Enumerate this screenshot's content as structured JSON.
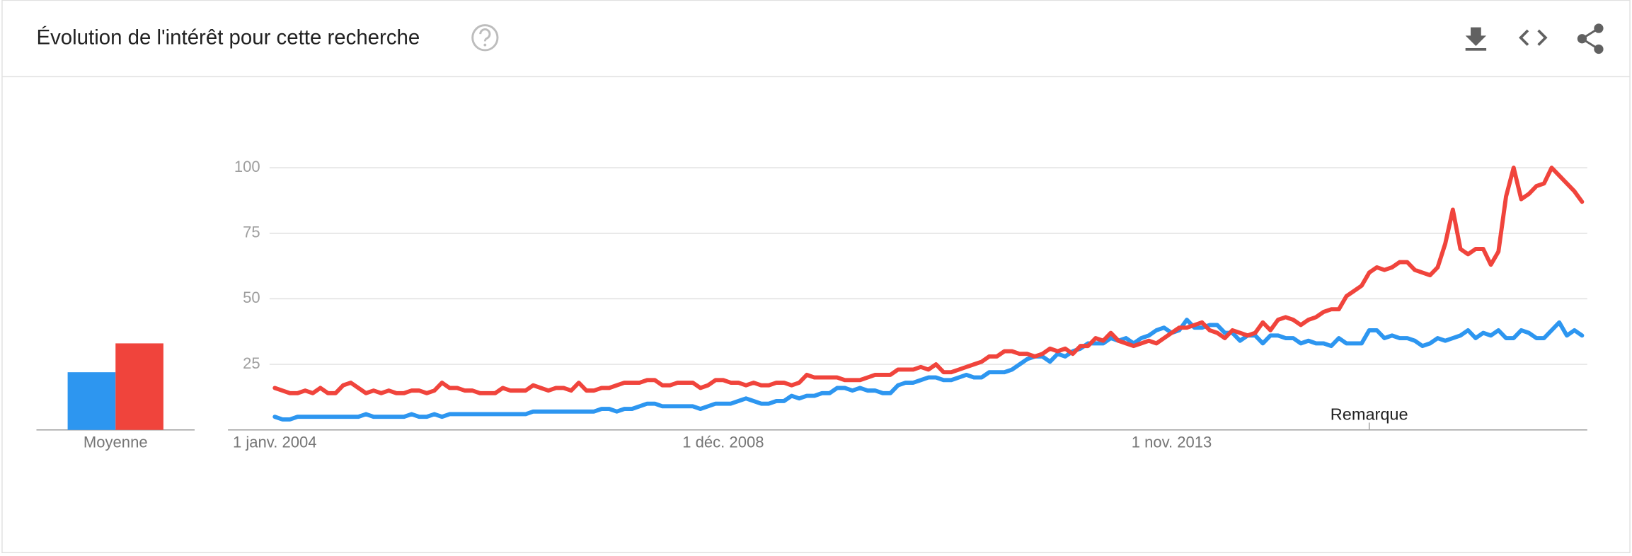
{
  "chart_data": {
    "type": "line",
    "title": "Évolution de l'intérêt pour cette recherche",
    "categories": [
      "1 janv. 2004",
      null,
      null,
      null,
      null,
      null,
      null,
      null,
      null,
      null,
      null,
      null,
      null,
      null,
      null,
      null,
      null,
      null,
      null,
      null,
      null,
      null,
      null,
      null,
      null,
      null,
      null,
      null,
      null,
      null,
      null,
      null,
      null,
      null,
      null,
      null,
      null,
      null,
      null,
      null,
      null,
      null,
      null,
      null,
      null,
      null,
      null,
      null,
      null,
      null,
      null,
      null,
      null,
      null,
      null,
      null,
      null,
      null,
      null,
      "1 déc. 2008",
      null,
      null,
      null,
      null,
      null,
      null,
      null,
      null,
      null,
      null,
      null,
      null,
      null,
      null,
      null,
      null,
      null,
      null,
      null,
      null,
      null,
      null,
      null,
      null,
      null,
      null,
      null,
      null,
      null,
      null,
      null,
      null,
      null,
      null,
      null,
      null,
      null,
      null,
      null,
      null,
      null,
      null,
      null,
      null,
      null,
      null,
      null,
      null,
      null,
      null,
      null,
      null,
      null,
      null,
      null,
      null,
      null,
      null,
      "1 nov. 2013",
      null,
      null,
      null,
      null,
      null,
      null,
      null,
      null,
      null,
      null,
      null,
      null,
      null,
      null,
      null,
      null,
      null,
      null,
      null,
      null,
      null,
      null,
      null,
      null,
      null,
      null,
      null,
      null,
      null,
      null,
      null,
      null,
      null,
      null,
      null,
      null,
      null,
      null,
      null,
      null,
      null,
      null,
      null,
      null,
      null,
      null,
      null,
      null,
      null,
      null,
      null,
      null,
      null,
      null
    ],
    "series": [
      {
        "color": "#2d96f0",
        "values": [
          5,
          4,
          4,
          5,
          5,
          5,
          5,
          5,
          5,
          5,
          5,
          5,
          6,
          5,
          5,
          5,
          5,
          5,
          6,
          5,
          5,
          6,
          5,
          6,
          6,
          6,
          6,
          6,
          6,
          6,
          6,
          6,
          6,
          6,
          7,
          7,
          7,
          7,
          7,
          7,
          7,
          7,
          7,
          8,
          8,
          7,
          8,
          8,
          9,
          10,
          10,
          9,
          9,
          9,
          9,
          9,
          8,
          9,
          10,
          10,
          10,
          11,
          12,
          11,
          10,
          10,
          11,
          11,
          13,
          12,
          13,
          13,
          14,
          14,
          16,
          16,
          15,
          16,
          15,
          15,
          14,
          14,
          17,
          18,
          18,
          19,
          20,
          20,
          19,
          19,
          20,
          21,
          20,
          20,
          22,
          22,
          22,
          23,
          25,
          27,
          28,
          28,
          26,
          29,
          28,
          30,
          31,
          33,
          33,
          33,
          35,
          34,
          35,
          33,
          35,
          36,
          38,
          39,
          37,
          38,
          42,
          39,
          39,
          40,
          40,
          37,
          37,
          34,
          36,
          36,
          33,
          36,
          36,
          35,
          35,
          33,
          34,
          33,
          33,
          32,
          35,
          33,
          33,
          33,
          38,
          38,
          35,
          36,
          35,
          35,
          34,
          32,
          33,
          35,
          34,
          35,
          36,
          38,
          35,
          37,
          36,
          38,
          35,
          35,
          38,
          37,
          35,
          35,
          38,
          41,
          36,
          38,
          36
        ]
      },
      {
        "color": "#f0443c",
        "values": [
          16,
          15,
          14,
          14,
          15,
          14,
          16,
          14,
          14,
          17,
          18,
          16,
          14,
          15,
          14,
          15,
          14,
          14,
          15,
          15,
          14,
          15,
          18,
          16,
          16,
          15,
          15,
          14,
          14,
          14,
          16,
          15,
          15,
          15,
          17,
          16,
          15,
          16,
          16,
          15,
          18,
          15,
          15,
          16,
          16,
          17,
          18,
          18,
          18,
          19,
          19,
          17,
          17,
          18,
          18,
          18,
          16,
          17,
          19,
          19,
          18,
          18,
          17,
          18,
          17,
          17,
          18,
          18,
          17,
          18,
          21,
          20,
          20,
          20,
          20,
          19,
          19,
          19,
          20,
          21,
          21,
          21,
          23,
          23,
          23,
          24,
          23,
          25,
          22,
          22,
          23,
          24,
          25,
          26,
          28,
          28,
          30,
          30,
          29,
          29,
          28,
          29,
          31,
          30,
          31,
          29,
          32,
          32,
          35,
          34,
          37,
          34,
          33,
          32,
          33,
          34,
          33,
          35,
          37,
          39,
          39,
          40,
          41,
          38,
          37,
          35,
          38,
          37,
          36,
          37,
          41,
          38,
          42,
          43,
          42,
          40,
          42,
          43,
          45,
          46,
          46,
          51,
          53,
          55,
          60,
          62,
          61,
          62,
          64,
          64,
          61,
          60,
          59,
          62,
          71,
          84,
          69,
          67,
          69,
          69,
          63,
          68,
          89,
          100,
          88,
          90,
          93,
          94,
          100,
          97,
          94,
          91,
          87
        ]
      }
    ],
    "ylim": [
      0,
      100
    ],
    "yticks": [
      25,
      50,
      75,
      100
    ],
    "grid": true,
    "averages": {
      "label": "Moyenne",
      "values": [
        22,
        33
      ]
    },
    "annotation": {
      "label": "Remarque",
      "category": 144
    }
  }
}
